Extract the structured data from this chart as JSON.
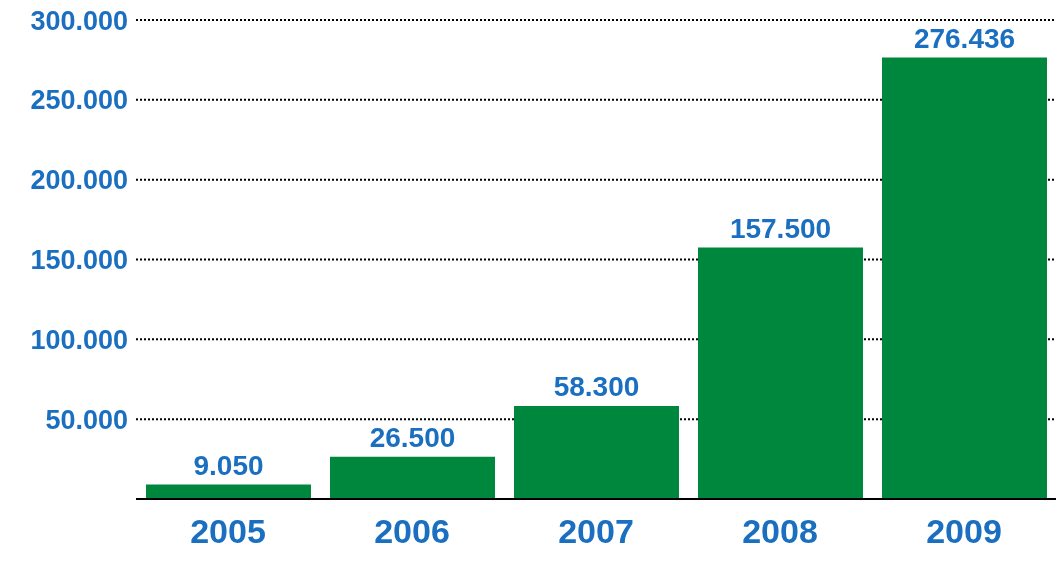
{
  "chart_data": {
    "type": "bar",
    "categories": [
      "2005",
      "2006",
      "2007",
      "2008",
      "2009"
    ],
    "values": [
      9050,
      26500,
      58300,
      157500,
      276436
    ],
    "value_labels": [
      "9.050",
      "26.500",
      "58.300",
      "157.500",
      "276.436"
    ],
    "color": "#00873e",
    "ylim": [
      0,
      300000
    ],
    "yticks": [
      {
        "value": 0,
        "label": null
      },
      {
        "value": 50000,
        "label": "50.000"
      },
      {
        "value": 100000,
        "label": "100.000"
      },
      {
        "value": 150000,
        "label": "150.000"
      },
      {
        "value": 200000,
        "label": "200.000"
      },
      {
        "value": 250000,
        "label": "250.000"
      },
      {
        "value": 300000,
        "label": "300.000"
      }
    ],
    "grid": "y",
    "legend": false
  }
}
